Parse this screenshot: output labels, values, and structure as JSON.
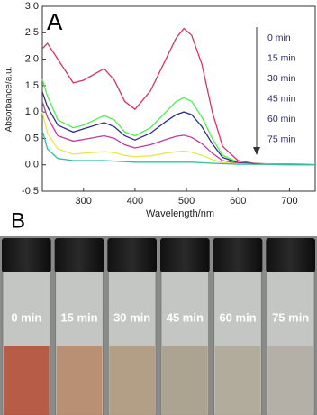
{
  "chart_data": {
    "type": "line",
    "panel_label": "A",
    "x_label": "Wavelength/nm",
    "y_label": "Absorbance/a.u.",
    "x": [
      220,
      230,
      250,
      280,
      300,
      340,
      360,
      380,
      400,
      430,
      460,
      480,
      495,
      510,
      530,
      550,
      570,
      600,
      630,
      650,
      700,
      750
    ],
    "series": [
      {
        "name": "0 min",
        "color": "#e0305a",
        "values": [
          2.2,
          2.3,
          2.0,
          1.55,
          1.6,
          1.82,
          1.6,
          1.2,
          1.05,
          1.4,
          2.0,
          2.4,
          2.58,
          2.45,
          1.9,
          1.0,
          0.35,
          0.08,
          0.03,
          0.02,
          0.01,
          0.0
        ]
      },
      {
        "name": "15 min",
        "color": "#4cef4c",
        "values": [
          1.62,
          1.3,
          0.85,
          0.7,
          0.75,
          0.93,
          0.85,
          0.62,
          0.55,
          0.7,
          1.0,
          1.2,
          1.27,
          1.2,
          0.9,
          0.5,
          0.18,
          0.05,
          0.02,
          0.02,
          0.01,
          0.0
        ]
      },
      {
        "name": "30 min",
        "color": "#2d2d8a",
        "values": [
          1.38,
          1.1,
          0.75,
          0.62,
          0.68,
          0.8,
          0.72,
          0.55,
          0.47,
          0.6,
          0.82,
          0.95,
          1.0,
          0.95,
          0.72,
          0.4,
          0.14,
          0.04,
          0.02,
          0.01,
          0.01,
          0.0
        ]
      },
      {
        "name": "45 min",
        "color": "#c03a9a",
        "values": [
          1.2,
          0.9,
          0.55,
          0.45,
          0.48,
          0.55,
          0.5,
          0.38,
          0.32,
          0.38,
          0.48,
          0.54,
          0.56,
          0.52,
          0.4,
          0.22,
          0.08,
          0.03,
          0.01,
          0.01,
          0.0,
          0.0
        ]
      },
      {
        "name": "60 min",
        "color": "#ece44c",
        "values": [
          1.0,
          0.6,
          0.3,
          0.2,
          0.22,
          0.25,
          0.23,
          0.18,
          0.15,
          0.17,
          0.22,
          0.25,
          0.26,
          0.24,
          0.18,
          0.1,
          0.04,
          0.02,
          0.01,
          0.01,
          0.0,
          0.0
        ]
      },
      {
        "name": "75 min",
        "color": "#30c0a0",
        "values": [
          0.65,
          0.3,
          0.12,
          0.08,
          0.08,
          0.08,
          0.07,
          0.06,
          0.05,
          0.05,
          0.05,
          0.05,
          0.05,
          0.05,
          0.04,
          0.03,
          0.02,
          0.01,
          0.01,
          0.01,
          0.0,
          0.0
        ]
      }
    ],
    "xlim": [
      220,
      750
    ],
    "xticks": [
      300,
      400,
      500,
      600,
      700
    ],
    "ylim": [
      -0.5,
      3.0
    ],
    "yticks": [
      -0.5,
      {
        "value": 0,
        "label": "0.0"
      },
      0.5,
      {
        "value": 1,
        "label": "1.0"
      },
      1.5,
      {
        "value": 2,
        "label": "2.0"
      },
      2.5,
      {
        "value": 3,
        "label": "3.0"
      }
    ],
    "grid": false
  },
  "photo": {
    "panel_label": "B",
    "vials": [
      "0 min",
      "15 min",
      "30 min",
      "45 min",
      "60 min",
      "75 min"
    ]
  }
}
